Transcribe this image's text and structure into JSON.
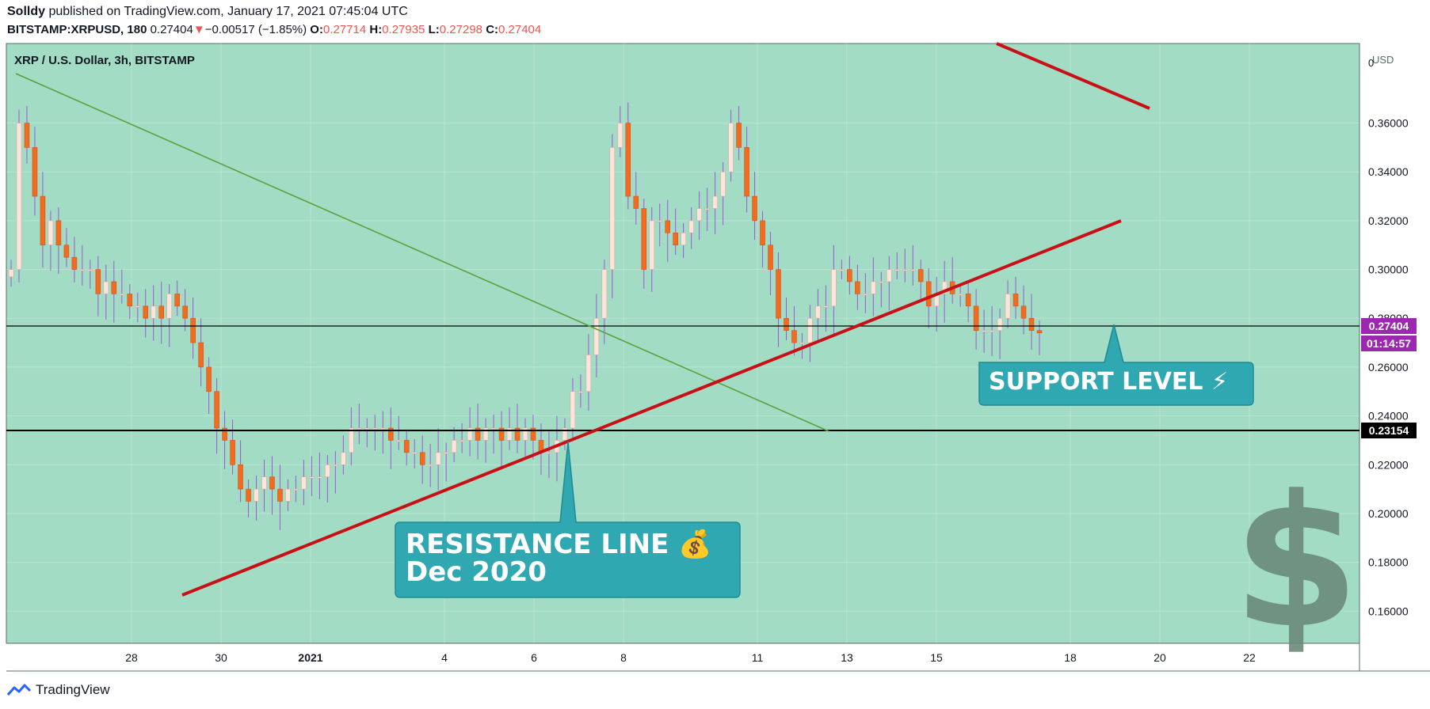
{
  "header": {
    "author": "Solldy",
    "published_text": "published on TradingView.com, January 17, 2021 07:45:04 UTC",
    "symbol": "BITSTAMP:XRPUSD, 180",
    "last": "0.27404",
    "change_arrow": "▼",
    "change": "−0.00517 (−1.85%)",
    "o_label": "O:",
    "o_value": "0.27714",
    "h_label": "H:",
    "h_value": "0.27935",
    "l_label": "L:",
    "l_value": "0.27298",
    "c_label": "C:",
    "c_value": "0.27404"
  },
  "chart_title": "XRP / U.S. Dollar, 3h, BITSTAMP",
  "currency": "USD",
  "price_badge": "0.27404",
  "timer_badge": "01:14:57",
  "level_badge": "0.23154",
  "annotations": {
    "resistance_line1": "RESISTANCE LINE 💰",
    "resistance_line2": "Dec 2020",
    "support": "SUPPORT LEVEL ⚡"
  },
  "footer": {
    "brand": "TradingView"
  },
  "colors": {
    "background": "#a3dcc5",
    "up": "#fce5dc",
    "down": "#f26b21",
    "wick": "#9c5ad6",
    "trend_red": "#c81016",
    "trend_green": "#5aa23c",
    "callout": "#30a8b2",
    "badge_purple": "#9c27b0"
  },
  "chart_data": {
    "type": "candlestick",
    "title": "XRP / U.S. Dollar, 3h, BITSTAMP",
    "x_ticks": [
      "28",
      "30",
      "2021",
      "4",
      "6",
      "8",
      "11",
      "13",
      "15",
      "18",
      "20",
      "22"
    ],
    "y_ticks": [
      "0.16000",
      "0.18000",
      "0.20000",
      "0.22000",
      "0.24000",
      "0.26000",
      "0.28000",
      "0.30000",
      "0.32000",
      "0.34000",
      "0.36000"
    ],
    "y_range": [
      0.1468,
      0.3926
    ],
    "horizontal_levels": [
      0.27404,
      0.23154
    ],
    "close_series": [
      0.3,
      0.36,
      0.35,
      0.33,
      0.31,
      0.32,
      0.31,
      0.305,
      0.3,
      0.3,
      0.3,
      0.29,
      0.295,
      0.29,
      0.29,
      0.285,
      0.285,
      0.28,
      0.285,
      0.28,
      0.29,
      0.285,
      0.28,
      0.27,
      0.26,
      0.25,
      0.235,
      0.23,
      0.22,
      0.21,
      0.205,
      0.21,
      0.215,
      0.21,
      0.205,
      0.21,
      0.21,
      0.215,
      0.215,
      0.215,
      0.22,
      0.22,
      0.225,
      0.235,
      0.235,
      0.235,
      0.235,
      0.235,
      0.23,
      0.23,
      0.225,
      0.225,
      0.22,
      0.22,
      0.225,
      0.225,
      0.23,
      0.23,
      0.235,
      0.23,
      0.235,
      0.235,
      0.23,
      0.235,
      0.23,
      0.235,
      0.23,
      0.225,
      0.225,
      0.23,
      0.235,
      0.25,
      0.25,
      0.265,
      0.28,
      0.3,
      0.35,
      0.36,
      0.33,
      0.325,
      0.3,
      0.32,
      0.32,
      0.315,
      0.31,
      0.315,
      0.32,
      0.325,
      0.325,
      0.33,
      0.34,
      0.36,
      0.35,
      0.33,
      0.32,
      0.31,
      0.3,
      0.28,
      0.275,
      0.27,
      0.27,
      0.28,
      0.285,
      0.285,
      0.3,
      0.3,
      0.295,
      0.29,
      0.29,
      0.295,
      0.295,
      0.3,
      0.3,
      0.3,
      0.3,
      0.295,
      0.285,
      0.29,
      0.295,
      0.29,
      0.29,
      0.285,
      0.275,
      0.275,
      0.275,
      0.28,
      0.29,
      0.285,
      0.28,
      0.275,
      0.274
    ]
  }
}
